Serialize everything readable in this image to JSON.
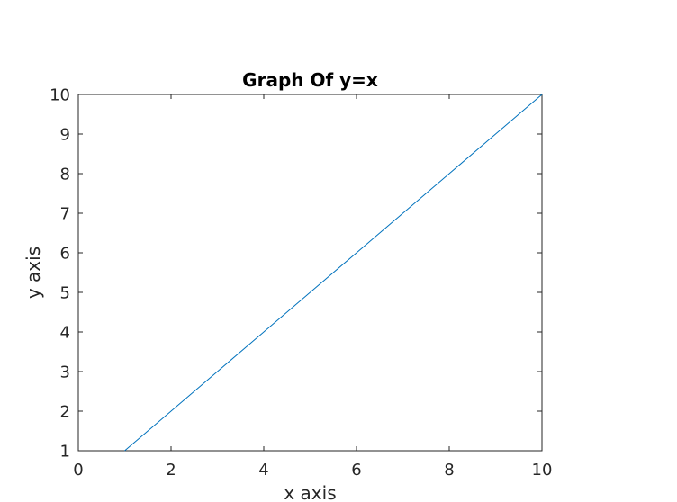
{
  "chart_data": {
    "type": "line",
    "title": "Graph Of y=x",
    "xlabel": "x axis",
    "ylabel": "y axis",
    "xlim": [
      0,
      10
    ],
    "ylim": [
      1,
      10
    ],
    "xticks": [
      "0",
      "2",
      "4",
      "6",
      "8",
      "10"
    ],
    "yticks": [
      "1",
      "2",
      "3",
      "4",
      "5",
      "6",
      "7",
      "8",
      "9",
      "10"
    ],
    "grid": false,
    "series": [
      {
        "x": [
          1,
          2,
          3,
          4,
          5,
          6,
          7,
          8,
          9,
          10
        ],
        "y": [
          1,
          2,
          3,
          4,
          5,
          6,
          7,
          8,
          9,
          10
        ],
        "color": "#0072bd"
      }
    ]
  }
}
